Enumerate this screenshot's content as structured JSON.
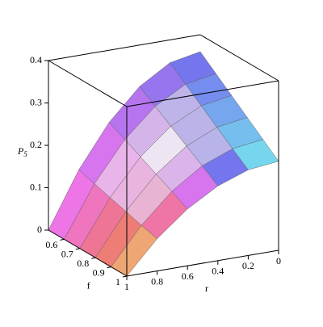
{
  "chart_data": {
    "type": "surface",
    "xlabel": "f",
    "ylabel": "r",
    "zlabel": "P",
    "zlabel_subscript": "5",
    "x": [
      0.5,
      0.6,
      0.7,
      0.8,
      0.9,
      1.0
    ],
    "y": [
      0,
      0.2,
      0.4,
      0.6,
      0.8,
      1.0
    ],
    "z": [
      [
        0.36,
        0.346,
        0.302,
        0.23,
        0.13,
        0
      ],
      [
        0.33,
        0.317,
        0.277,
        0.211,
        0.119,
        0
      ],
      [
        0.3,
        0.288,
        0.252,
        0.192,
        0.108,
        0
      ],
      [
        0.27,
        0.259,
        0.227,
        0.173,
        0.097,
        0
      ],
      [
        0.24,
        0.23,
        0.202,
        0.154,
        0.086,
        0
      ],
      [
        0.21,
        0.202,
        0.176,
        0.134,
        0.076,
        0
      ]
    ],
    "xlim": [
      0.5,
      1
    ],
    "ylim": [
      0,
      1
    ],
    "zlim": [
      0,
      0.4
    ],
    "xticks": [
      0.6,
      0.7,
      0.8,
      0.9,
      1
    ],
    "yticks": [
      1,
      0.8,
      0.6,
      0.4,
      0.2,
      0
    ],
    "zticks": [
      0,
      0.1,
      0.2,
      0.3,
      0.4
    ]
  }
}
